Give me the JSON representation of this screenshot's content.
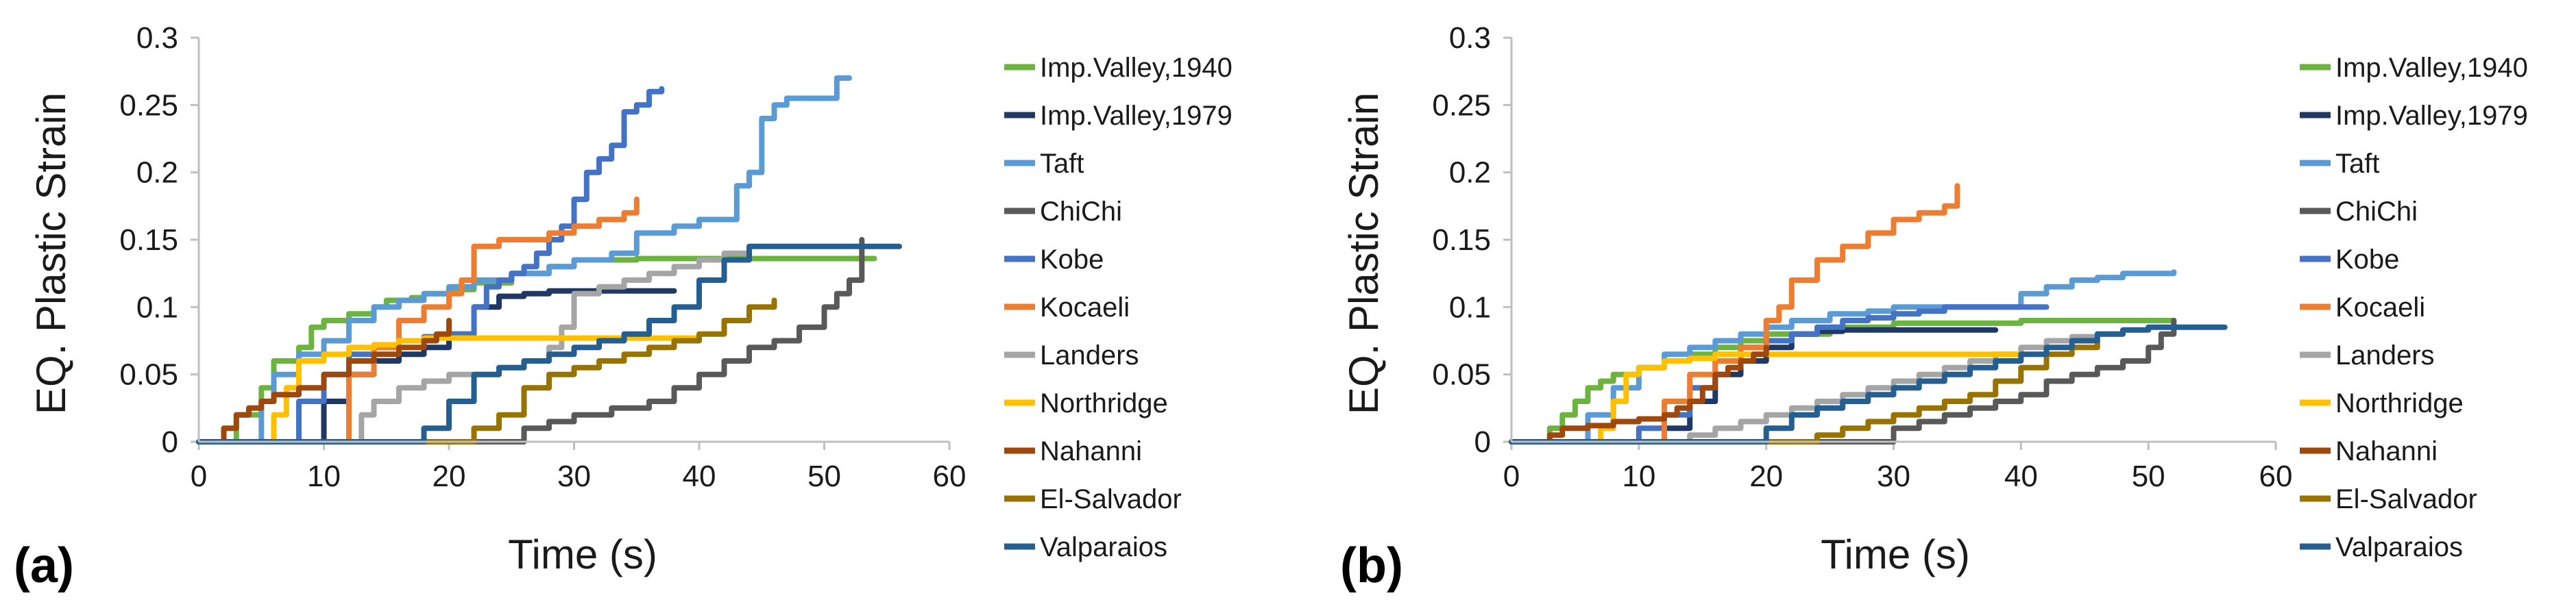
{
  "colors": {
    "Imp.Valley,1940": "#6db33f",
    "Imp.Valley,1979": "#1f3864",
    "Taft": "#5b9bd5",
    "ChiChi": "#595959",
    "Kobe": "#4472c4",
    "Kocaeli": "#ed7d31",
    "Landers": "#a5a5a5",
    "Northridge": "#ffc000",
    "Nahanni": "#9e480e",
    "El-Salvador": "#997300",
    "Valparaios": "#255e91"
  },
  "chart_data": [
    {
      "panel_label": "(a)",
      "type": "line",
      "xlabel": "Time (s)",
      "ylabel": "EQ. Plastic Strain",
      "xlim": [
        0,
        60
      ],
      "ylim": [
        0,
        0.3
      ],
      "xticks": [
        "0",
        "10",
        "20",
        "30",
        "40",
        "50",
        "60"
      ],
      "yticks": [
        "0",
        "0.05",
        "0.1",
        "0.15",
        "0.2",
        "0.25",
        "0.3"
      ],
      "legend": [
        "Imp.Valley,1940",
        "Imp.Valley,1979",
        "Taft",
        "ChiChi",
        "Kobe",
        "Kocaeli",
        "Landers",
        "Northridge",
        "Nahanni",
        "El-Salvador",
        "Valparaios"
      ],
      "series": [
        {
          "name": "Imp.Valley,1940",
          "x": [
            0,
            2,
            3,
            5,
            6,
            8,
            9,
            10,
            12,
            14,
            15,
            17,
            18,
            20,
            22,
            25,
            28,
            30,
            35,
            40,
            45,
            50,
            54
          ],
          "y": [
            0,
            0,
            0.02,
            0.04,
            0.06,
            0.07,
            0.085,
            0.09,
            0.095,
            0.1,
            0.105,
            0.107,
            0.11,
            0.113,
            0.118,
            0.125,
            0.13,
            0.135,
            0.136,
            0.136,
            0.136,
            0.136,
            0.136
          ]
        },
        {
          "name": "Imp.Valley,1979",
          "x": [
            0,
            8,
            10,
            12,
            14,
            16,
            18,
            20,
            22,
            24,
            26,
            28,
            30,
            33,
            35,
            38
          ],
          "y": [
            0,
            0,
            0.03,
            0.05,
            0.06,
            0.065,
            0.07,
            0.08,
            0.1,
            0.108,
            0.11,
            0.112,
            0.112,
            0.112,
            0.112,
            0.112
          ]
        },
        {
          "name": "Taft",
          "x": [
            0,
            3,
            5,
            6,
            8,
            10,
            12,
            14,
            16,
            18,
            20,
            22,
            25,
            28,
            30,
            33,
            35,
            38,
            40,
            42,
            43,
            44,
            45,
            46,
            47,
            49,
            50,
            51,
            52
          ],
          "y": [
            0,
            0,
            0.03,
            0.05,
            0.065,
            0.075,
            0.09,
            0.1,
            0.105,
            0.11,
            0.115,
            0.12,
            0.125,
            0.13,
            0.135,
            0.14,
            0.155,
            0.16,
            0.165,
            0.165,
            0.19,
            0.2,
            0.24,
            0.25,
            0.255,
            0.255,
            0.255,
            0.27,
            0.27
          ]
        },
        {
          "name": "ChiChi",
          "x": [
            0,
            24,
            26,
            28,
            30,
            33,
            36,
            38,
            40,
            42,
            44,
            46,
            48,
            50,
            51,
            52,
            53
          ],
          "y": [
            0,
            0,
            0.01,
            0.015,
            0.02,
            0.025,
            0.03,
            0.04,
            0.05,
            0.06,
            0.07,
            0.075,
            0.085,
            0.1,
            0.11,
            0.12,
            0.15
          ]
        },
        {
          "name": "Kobe",
          "x": [
            0,
            5,
            8,
            10,
            12,
            14,
            16,
            18,
            20,
            22,
            23,
            24,
            25,
            26,
            27,
            28,
            29,
            30,
            31,
            32,
            33,
            34,
            35,
            36,
            37
          ],
          "y": [
            0,
            0,
            0.03,
            0.05,
            0.065,
            0.07,
            0.075,
            0.078,
            0.08,
            0.1,
            0.115,
            0.12,
            0.125,
            0.13,
            0.14,
            0.15,
            0.16,
            0.18,
            0.2,
            0.21,
            0.22,
            0.245,
            0.25,
            0.26,
            0.262
          ]
        },
        {
          "name": "Kocaeli",
          "x": [
            0,
            10,
            12,
            14,
            16,
            18,
            20,
            21,
            22,
            24,
            26,
            28,
            30,
            32,
            34,
            35
          ],
          "y": [
            0,
            0,
            0.05,
            0.07,
            0.09,
            0.1,
            0.11,
            0.12,
            0.145,
            0.15,
            0.15,
            0.155,
            0.16,
            0.165,
            0.17,
            0.18
          ]
        },
        {
          "name": "Landers",
          "x": [
            0,
            12,
            13,
            14,
            16,
            18,
            20,
            22,
            24,
            26,
            28,
            29,
            30,
            32,
            34,
            36,
            38,
            40,
            42,
            44
          ],
          "y": [
            0,
            0,
            0.02,
            0.03,
            0.04,
            0.045,
            0.05,
            0.05,
            0.055,
            0.06,
            0.07,
            0.085,
            0.11,
            0.115,
            0.12,
            0.125,
            0.13,
            0.135,
            0.14,
            0.14
          ]
        },
        {
          "name": "Northridge",
          "x": [
            0,
            5,
            6,
            7,
            8,
            10,
            12,
            14,
            16,
            18,
            20,
            25,
            30,
            35,
            40
          ],
          "y": [
            0,
            0,
            0.02,
            0.04,
            0.06,
            0.065,
            0.07,
            0.072,
            0.075,
            0.077,
            0.077,
            0.077,
            0.077,
            0.077,
            0.077
          ]
        },
        {
          "name": "Nahanni",
          "x": [
            0,
            1,
            2,
            3,
            4,
            5,
            6,
            8,
            10,
            12,
            14,
            16,
            18,
            19,
            20
          ],
          "y": [
            0,
            0,
            0.01,
            0.02,
            0.025,
            0.03,
            0.035,
            0.04,
            0.05,
            0.06,
            0.065,
            0.07,
            0.075,
            0.08,
            0.09
          ]
        },
        {
          "name": "El-Salvador",
          "x": [
            0,
            20,
            22,
            24,
            26,
            28,
            30,
            32,
            34,
            36,
            38,
            40,
            42,
            44,
            46
          ],
          "y": [
            0,
            0,
            0.01,
            0.02,
            0.04,
            0.05,
            0.055,
            0.06,
            0.065,
            0.07,
            0.075,
            0.08,
            0.09,
            0.1,
            0.105
          ]
        },
        {
          "name": "Valparaios",
          "x": [
            0,
            17,
            18,
            20,
            22,
            24,
            26,
            28,
            30,
            32,
            34,
            36,
            38,
            40,
            42,
            44,
            46,
            50,
            56
          ],
          "y": [
            0,
            0,
            0.01,
            0.03,
            0.05,
            0.055,
            0.06,
            0.065,
            0.07,
            0.075,
            0.08,
            0.09,
            0.1,
            0.12,
            0.135,
            0.145,
            0.145,
            0.145,
            0.145
          ]
        }
      ]
    },
    {
      "panel_label": "(b)",
      "type": "line",
      "xlabel": "Time (s)",
      "ylabel": "EQ. Plastic Strain",
      "xlim": [
        0,
        60
      ],
      "ylim": [
        0,
        0.3
      ],
      "xticks": [
        "0",
        "10",
        "20",
        "30",
        "40",
        "50",
        "60"
      ],
      "yticks": [
        "0",
        "0.05",
        "0.1",
        "0.15",
        "0.2",
        "0.25",
        "0.3"
      ],
      "legend": [
        "Imp.Valley,1940",
        "Imp.Valley,1979",
        "Taft",
        "ChiChi",
        "Kobe",
        "Kocaeli",
        "Landers",
        "Northridge",
        "Nahanni",
        "El-Salvador",
        "Valparaios"
      ],
      "series": [
        {
          "name": "Imp.Valley,1940",
          "x": [
            0,
            2,
            3,
            4,
            5,
            6,
            7,
            8,
            10,
            12,
            14,
            16,
            18,
            20,
            25,
            30,
            40,
            50,
            52
          ],
          "y": [
            0,
            0,
            0.01,
            0.02,
            0.03,
            0.04,
            0.045,
            0.05,
            0.055,
            0.06,
            0.065,
            0.07,
            0.075,
            0.08,
            0.085,
            0.088,
            0.09,
            0.09,
            0.09
          ]
        },
        {
          "name": "Imp.Valley,1979",
          "x": [
            0,
            10,
            12,
            14,
            16,
            18,
            20,
            22,
            24,
            26,
            28,
            30,
            33,
            35,
            38
          ],
          "y": [
            0,
            0,
            0.01,
            0.03,
            0.05,
            0.06,
            0.07,
            0.08,
            0.082,
            0.083,
            0.083,
            0.083,
            0.083,
            0.083,
            0.083
          ]
        },
        {
          "name": "Taft",
          "x": [
            0,
            5,
            6,
            8,
            10,
            12,
            14,
            16,
            18,
            20,
            22,
            25,
            28,
            30,
            33,
            36,
            40,
            42,
            44,
            46,
            48,
            50,
            52
          ],
          "y": [
            0,
            0,
            0.02,
            0.04,
            0.055,
            0.065,
            0.07,
            0.075,
            0.08,
            0.085,
            0.09,
            0.095,
            0.097,
            0.1,
            0.1,
            0.1,
            0.11,
            0.115,
            0.12,
            0.122,
            0.125,
            0.125,
            0.126
          ]
        },
        {
          "name": "ChiChi",
          "x": [
            0,
            29,
            30,
            32,
            34,
            36,
            38,
            40,
            42,
            44,
            46,
            48,
            50,
            51,
            52
          ],
          "y": [
            0,
            0,
            0.01,
            0.015,
            0.02,
            0.025,
            0.03,
            0.035,
            0.045,
            0.05,
            0.055,
            0.06,
            0.07,
            0.08,
            0.09
          ]
        },
        {
          "name": "Kobe",
          "x": [
            0,
            8,
            10,
            12,
            14,
            16,
            18,
            20,
            22,
            24,
            26,
            28,
            30,
            32,
            34,
            36,
            38,
            40,
            42
          ],
          "y": [
            0,
            0,
            0.01,
            0.02,
            0.04,
            0.06,
            0.07,
            0.075,
            0.08,
            0.085,
            0.09,
            0.092,
            0.095,
            0.097,
            0.1,
            0.1,
            0.1,
            0.1,
            0.1
          ]
        },
        {
          "name": "Kocaeli",
          "x": [
            0,
            11,
            12,
            14,
            16,
            18,
            20,
            21,
            22,
            24,
            26,
            28,
            30,
            32,
            34,
            35
          ],
          "y": [
            0,
            0,
            0.03,
            0.05,
            0.06,
            0.07,
            0.09,
            0.1,
            0.12,
            0.135,
            0.145,
            0.155,
            0.165,
            0.17,
            0.175,
            0.19
          ]
        },
        {
          "name": "Landers",
          "x": [
            0,
            12,
            14,
            16,
            18,
            20,
            22,
            24,
            26,
            28,
            30,
            32,
            34,
            36,
            38,
            40,
            42,
            44,
            46,
            48
          ],
          "y": [
            0,
            0,
            0.005,
            0.01,
            0.015,
            0.02,
            0.025,
            0.03,
            0.035,
            0.04,
            0.045,
            0.05,
            0.055,
            0.06,
            0.065,
            0.07,
            0.075,
            0.078,
            0.08,
            0.08
          ]
        },
        {
          "name": "Northridge",
          "x": [
            0,
            6,
            7,
            8,
            9,
            10,
            12,
            14,
            16,
            20,
            25,
            30,
            35,
            40
          ],
          "y": [
            0,
            0,
            0.01,
            0.03,
            0.05,
            0.055,
            0.06,
            0.062,
            0.065,
            0.065,
            0.065,
            0.065,
            0.065,
            0.065
          ]
        },
        {
          "name": "Nahanni",
          "x": [
            0,
            2,
            3,
            4,
            6,
            8,
            10,
            12,
            13,
            14,
            15,
            16,
            17,
            18,
            19,
            20
          ],
          "y": [
            0,
            0,
            0.005,
            0.01,
            0.012,
            0.015,
            0.017,
            0.02,
            0.025,
            0.03,
            0.04,
            0.05,
            0.055,
            0.06,
            0.065,
            0.07
          ]
        },
        {
          "name": "El-Salvador",
          "x": [
            0,
            22,
            24,
            26,
            28,
            30,
            32,
            34,
            36,
            38,
            40,
            42,
            44,
            46
          ],
          "y": [
            0,
            0,
            0.005,
            0.01,
            0.015,
            0.02,
            0.025,
            0.03,
            0.035,
            0.045,
            0.055,
            0.065,
            0.07,
            0.075
          ]
        },
        {
          "name": "Valparaios",
          "x": [
            0,
            18,
            20,
            22,
            24,
            26,
            28,
            30,
            32,
            34,
            36,
            38,
            40,
            42,
            44,
            46,
            48,
            50,
            56
          ],
          "y": [
            0,
            0,
            0.01,
            0.02,
            0.025,
            0.03,
            0.035,
            0.04,
            0.045,
            0.05,
            0.055,
            0.06,
            0.065,
            0.07,
            0.075,
            0.08,
            0.083,
            0.085,
            0.085
          ]
        }
      ]
    }
  ]
}
